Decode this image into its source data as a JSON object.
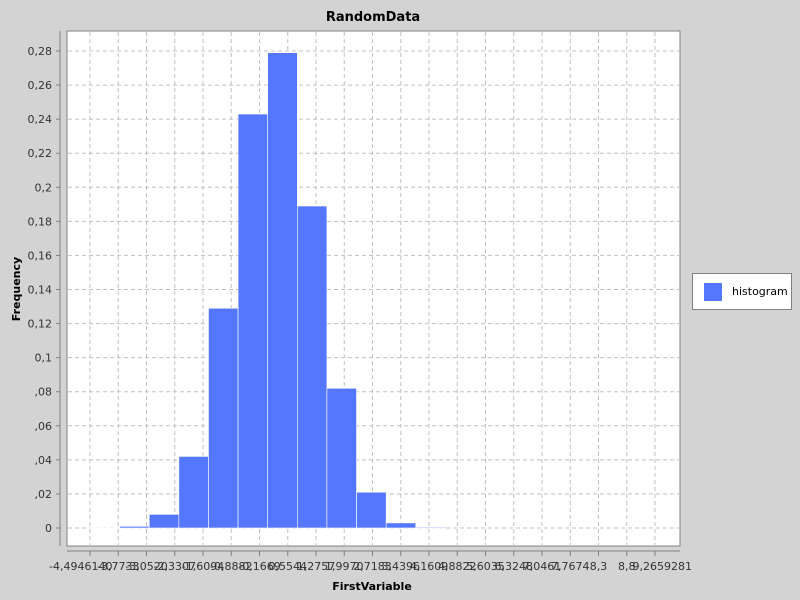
{
  "chart_data": {
    "type": "bar",
    "title": "RandomData",
    "xlabel": "FirstVariable",
    "ylabel": "Frequency",
    "ylim": [
      0,
      0.29
    ],
    "y_ticks": [
      "0",
      ",02",
      ",04",
      ",06",
      ",08",
      "0,1",
      "0,12",
      "0,14",
      "0,16",
      "0,18",
      "0,2",
      "0,22",
      "0,24",
      "0,26",
      "0,28"
    ],
    "y_tick_values": [
      0,
      0.02,
      0.04,
      0.06,
      0.08,
      0.1,
      0.12,
      0.14,
      0.16,
      0.18,
      0.2,
      0.22,
      0.24,
      0.26,
      0.28
    ],
    "x_tick_labels": [
      "-4,4946140",
      "-3,7733",
      "-3,0520",
      "-2,3307",
      "-1,6094",
      "-0,8882",
      "-0,1669",
      "0,5544",
      "1,2757",
      "1,9970",
      "2,7183",
      "3,4396",
      "4,1609",
      "4,8822",
      "5,6035",
      "6,3248",
      "7,0461",
      "7,7674",
      "8,3",
      "8,8",
      "9,2659281"
    ],
    "x_range": [
      -4.494614,
      9.2659281
    ],
    "bins": [
      {
        "start": -4.494614,
        "end": -3.7733,
        "value": 0.0
      },
      {
        "start": -3.7733,
        "end": -3.052,
        "value": 0.001
      },
      {
        "start": -3.052,
        "end": -2.3307,
        "value": 0.008
      },
      {
        "start": -2.3307,
        "end": -1.6094,
        "value": 0.042
      },
      {
        "start": -1.6094,
        "end": -0.8882,
        "value": 0.129
      },
      {
        "start": -0.8882,
        "end": -0.1669,
        "value": 0.243
      },
      {
        "start": -0.1669,
        "end": 0.5544,
        "value": 0.279
      },
      {
        "start": 0.5544,
        "end": 1.2757,
        "value": 0.189
      },
      {
        "start": 1.2757,
        "end": 1.997,
        "value": 0.082
      },
      {
        "start": 1.997,
        "end": 2.7183,
        "value": 0.021
      },
      {
        "start": 2.7183,
        "end": 3.4396,
        "value": 0.003
      },
      {
        "start": 3.4396,
        "end": 4.1609,
        "value": 0.0005
      }
    ],
    "series": [
      {
        "name": "histogram"
      }
    ],
    "grid": true,
    "legend_position": "right",
    "bar_color": "#5577ff",
    "plot_background": "#ffffff",
    "grid_color": "#c0c0c0"
  }
}
